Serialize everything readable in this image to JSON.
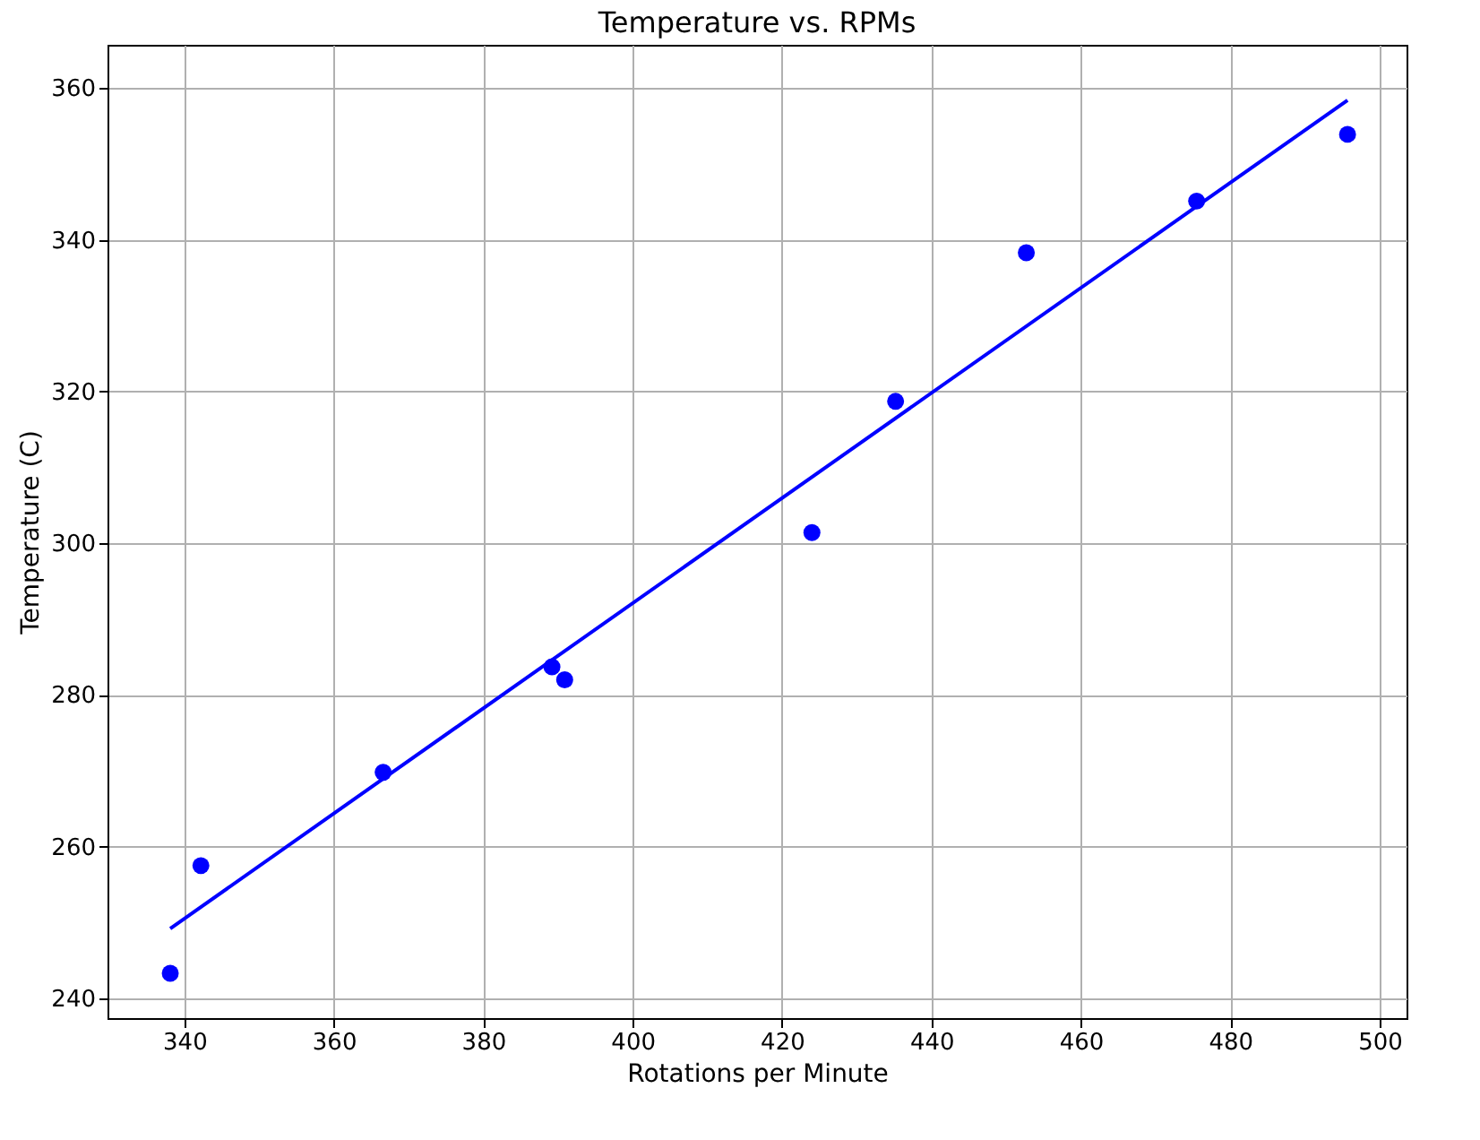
{
  "chart_data": {
    "type": "scatter",
    "title": "Temperature vs. RPMs",
    "xlabel": "Rotations per Minute",
    "ylabel": "Temperature (C)",
    "xlim": [
      329.7,
      503.6
    ],
    "ylim": [
      237.4,
      365.7
    ],
    "xticks": [
      340,
      360,
      380,
      400,
      420,
      440,
      460,
      480,
      500
    ],
    "yticks": [
      240,
      260,
      280,
      300,
      320,
      340,
      360
    ],
    "grid": true,
    "series": [
      {
        "color": "#0000ff",
        "marker": "circle",
        "x": [
          338.1,
          342.2,
          366.6,
          389.2,
          390.9,
          424.0,
          435.2,
          452.7,
          475.5,
          495.7
        ],
        "values": [
          243.3,
          257.5,
          269.8,
          283.7,
          282.0,
          301.4,
          318.7,
          338.3,
          345.1,
          353.9
        ]
      },
      {
        "type": "line",
        "color": "#0000ff",
        "marker": "none",
        "x": [
          338.1,
          495.7
        ],
        "values": [
          249.2,
          358.4
        ]
      }
    ]
  }
}
